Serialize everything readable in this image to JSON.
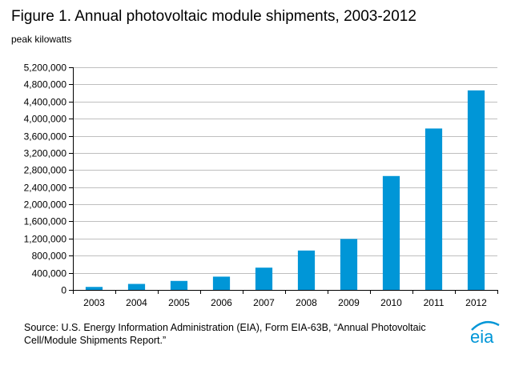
{
  "header": {
    "title": "Figure 1. Annual photovoltaic module shipments, 2003-2012",
    "unit_label": "peak kilowatts"
  },
  "chart_data": {
    "type": "bar",
    "title": "Figure 1. Annual photovoltaic module shipments, 2003-2012",
    "xlabel": "",
    "ylabel": "peak kilowatts",
    "categories": [
      "2003",
      "2004",
      "2005",
      "2006",
      "2007",
      "2008",
      "2009",
      "2010",
      "2011",
      "2012"
    ],
    "values": [
      70000,
      140000,
      210000,
      310000,
      520000,
      920000,
      1190000,
      2660000,
      3770000,
      4660000
    ],
    "ylim": [
      0,
      5200000
    ],
    "yticks": [
      0,
      400000,
      800000,
      1200000,
      1600000,
      2000000,
      2400000,
      2800000,
      3200000,
      3600000,
      4000000,
      4400000,
      4800000,
      5200000
    ],
    "ytick_labels": [
      "0",
      "400,000",
      "800,000",
      "1,200,000",
      "1,600,000",
      "2,000,000",
      "2,400,000",
      "2,800,000",
      "3,200,000",
      "3,600,000",
      "4,000,000",
      "4,400,000",
      "4,800,000",
      "5,200,000"
    ],
    "bar_color": "#0096d7",
    "grid": true,
    "legend": false
  },
  "footer": {
    "source": "Source:  U.S. Energy Information Administration (EIA), Form EIA-63B, “Annual Photovoltaic Cell/Module Shipments Report.”",
    "logo_text": "eia",
    "logo_color": "#0096d7"
  }
}
